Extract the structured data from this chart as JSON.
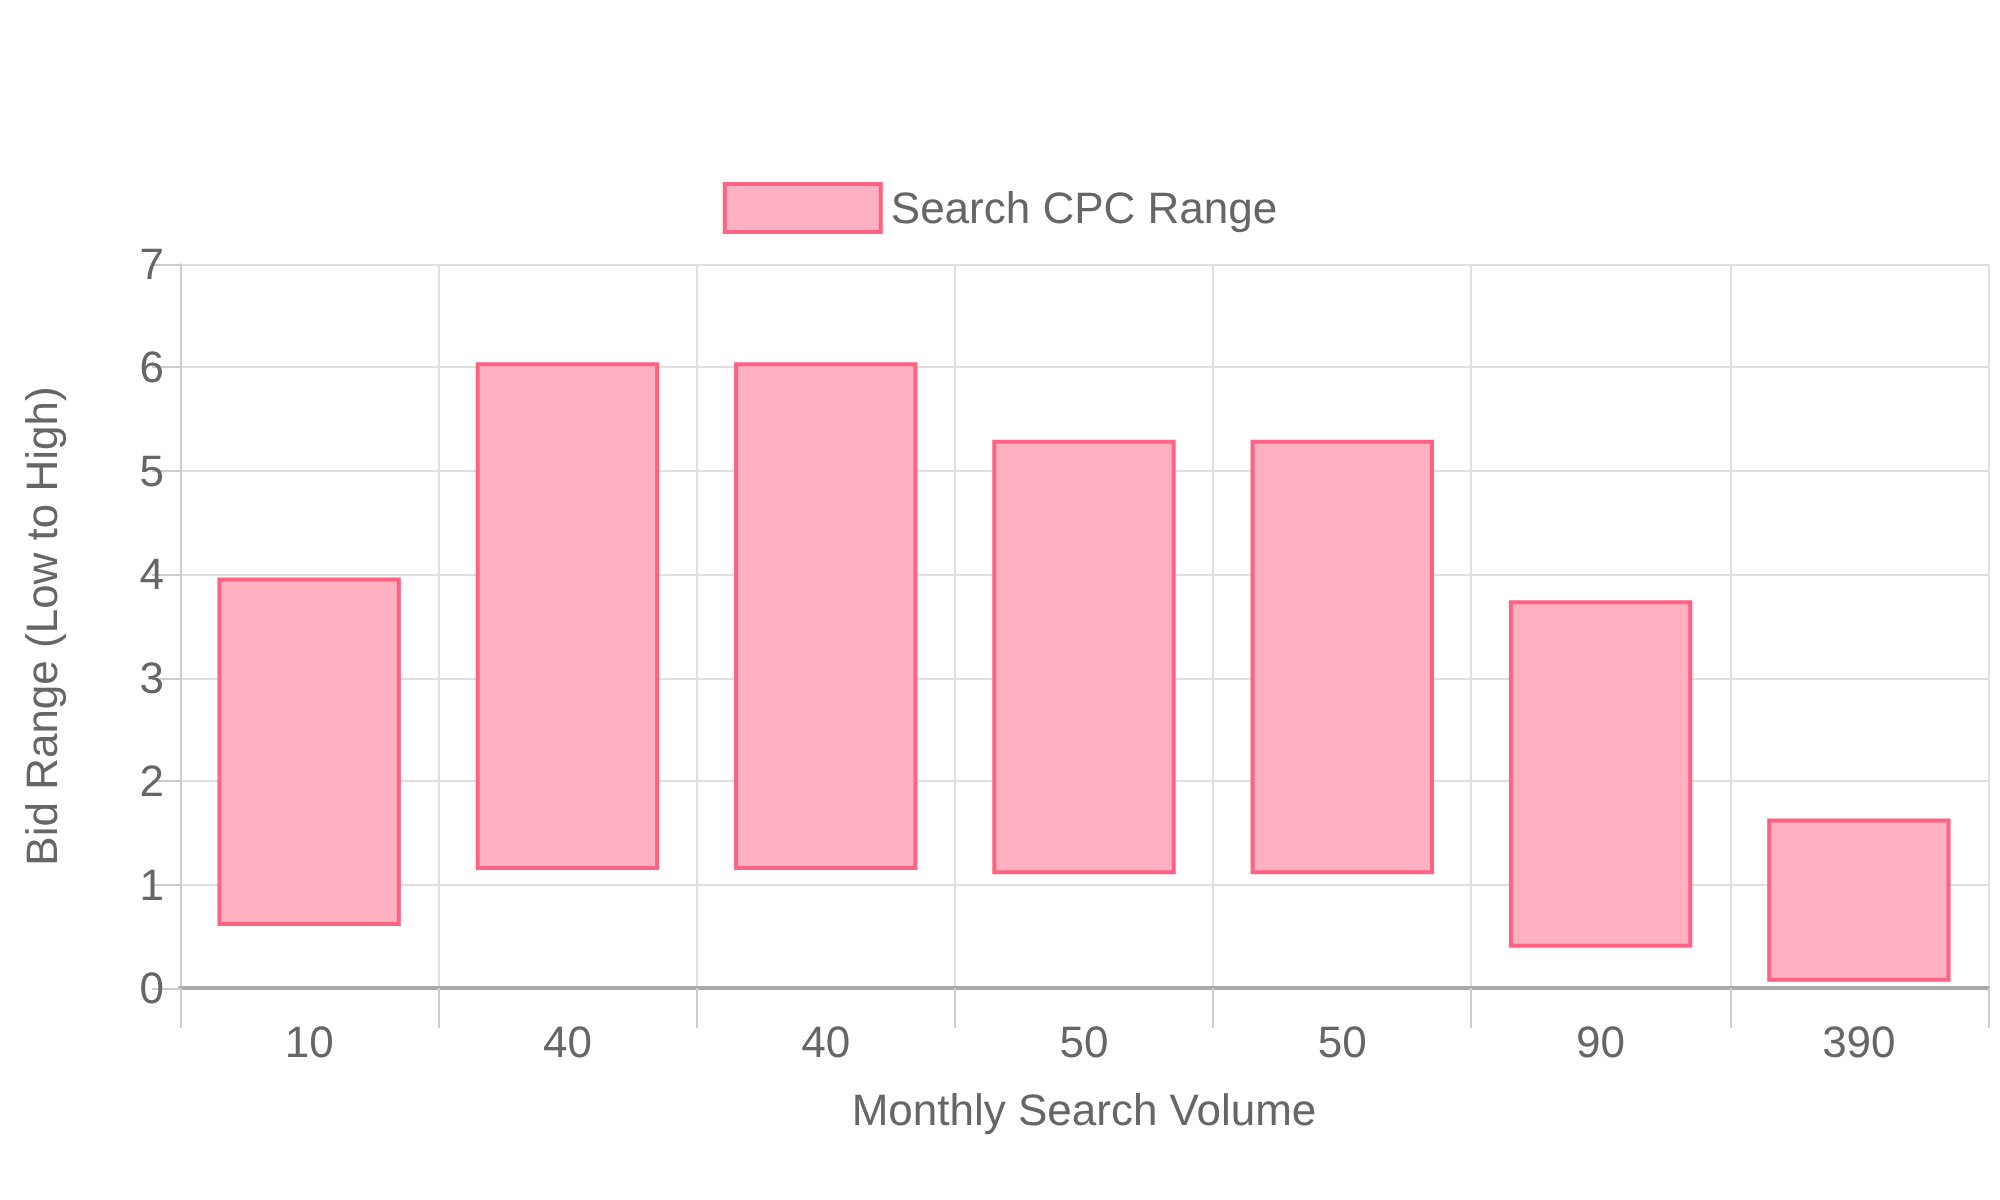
{
  "chart_data": {
    "type": "bar",
    "xlabel": "Monthly Search Volume",
    "ylabel": "Bid Range (Low to High)",
    "categories": [
      "10",
      "40",
      "40",
      "50",
      "50",
      "90",
      "390"
    ],
    "series": [
      {
        "name": "Search CPC Range",
        "color": "#ffb1c1",
        "values": [
          3.37,
          4.91,
          4.91,
          4.2,
          4.2,
          3.36,
          1.58
        ],
        "base": [
          0.6,
          1.14,
          1.14,
          1.1,
          1.1,
          0.39,
          0.06
        ]
      }
    ],
    "ylim": [
      0,
      7
    ],
    "yticks": [
      0,
      1,
      2,
      3,
      4,
      5,
      6,
      7
    ],
    "grid": true,
    "legend": "top"
  }
}
